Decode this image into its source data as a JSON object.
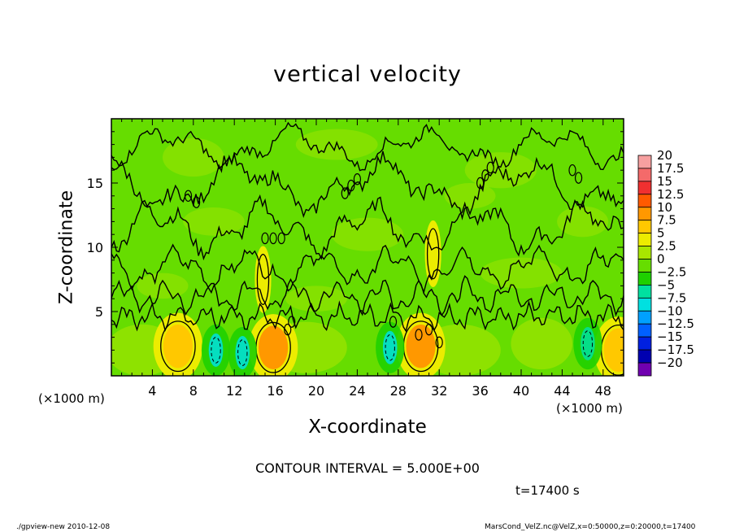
{
  "chart_data": {
    "type": "heatmap",
    "title": "vertical velocity",
    "xlabel": "X-coordinate",
    "ylabel": "Z-coordinate",
    "x_unit_left": "(×1000 m)",
    "x_unit_right": "(×1000 m)",
    "xlim": [
      0,
      50
    ],
    "ylim": [
      0,
      20
    ],
    "x_ticks": [
      4,
      8,
      12,
      16,
      20,
      24,
      28,
      32,
      36,
      40,
      44,
      48
    ],
    "y_ticks": [
      5,
      10,
      15
    ],
    "contour_interval_text": "CONTOUR INTERVAL = 5.000E+00",
    "time_text": "t=17400 s",
    "colorbar": {
      "labels": [
        "20",
        "17.5",
        "15",
        "12.5",
        "10",
        "7.5",
        "5",
        "2.5",
        "0",
        "−2.5",
        "−5",
        "−7.5",
        "−10",
        "−12.5",
        "−15",
        "−17.5",
        "−20"
      ],
      "levels": [
        20,
        17.5,
        15,
        12.5,
        10,
        7.5,
        5,
        2.5,
        0,
        -2.5,
        -5,
        -7.5,
        -10,
        -12.5,
        -15,
        -17.5,
        -20
      ],
      "colors": [
        "#f7a0a0",
        "#f46a6a",
        "#f03030",
        "#ff5a00",
        "#ff9800",
        "#ffc800",
        "#ecec00",
        "#a8e600",
        "#66dd00",
        "#1fd000",
        "#00e0a0",
        "#00e0e0",
        "#00a0ff",
        "#0060ff",
        "#0020e0",
        "#0000b0",
        "#7000b0"
      ]
    },
    "features": {
      "updrafts": [
        {
          "x": 6.5,
          "z": 2.3,
          "value": 7.5
        },
        {
          "x": 15.8,
          "z": 2.2,
          "value": 10
        },
        {
          "x": 30.2,
          "z": 2.3,
          "value": 10
        },
        {
          "x": 49.5,
          "z": 2.0,
          "value": 7.5
        },
        {
          "x": 14.8,
          "z": 7.5,
          "value": 5
        },
        {
          "x": 31.4,
          "z": 9.5,
          "value": 5
        }
      ],
      "downdrafts": [
        {
          "x": 10.2,
          "z": 2.0,
          "value": -7.5
        },
        {
          "x": 12.8,
          "z": 1.8,
          "value": -7.5
        },
        {
          "x": 27.2,
          "z": 2.2,
          "value": -7.5
        },
        {
          "x": 46.5,
          "z": 2.5,
          "value": -5
        }
      ]
    }
  },
  "footer": {
    "left": "./gpview-new  2010-12-08",
    "right": "MarsCond_VelZ.nc@VelZ,x=0:50000,z=0:20000,t=17400"
  }
}
